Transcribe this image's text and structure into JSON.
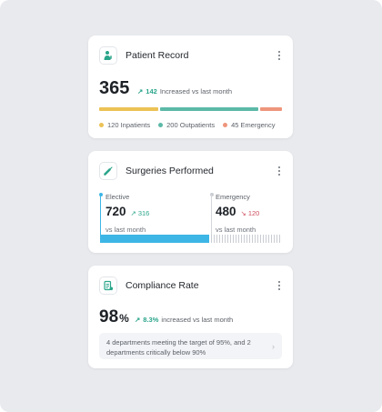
{
  "colors": {
    "accent_green": "#2aa58a",
    "down_red": "#d05060",
    "inpatients": "#ecc255",
    "outpatients": "#5cb9a7",
    "emergency": "#ee957c",
    "elective_bar": "#3db6e6",
    "emergency_bar": "#c9ccd2"
  },
  "patient_record": {
    "title": "Patient Record",
    "icon": "doctor-icon",
    "total": "365",
    "change_value": "142",
    "change_text": "Increased vs last month",
    "distribution": [
      {
        "label": "120 Inpatients",
        "value": 120,
        "color": "#ecc255"
      },
      {
        "label": "200 Outpatients",
        "value": 200,
        "color": "#5cb9a7"
      },
      {
        "label": "45 Emergency",
        "value": 45,
        "color": "#ee957c"
      }
    ]
  },
  "surgeries": {
    "title": "Surgeries Performed",
    "icon": "syringe-icon",
    "elective": {
      "label": "Elective",
      "value": "720",
      "change": "316",
      "sub": "vs last month"
    },
    "emergency": {
      "label": "Emergency",
      "value": "480",
      "change": "120",
      "sub": "vs last month"
    },
    "elective_share": 0.6
  },
  "compliance": {
    "title": "Compliance Rate",
    "icon": "clipboard-icon",
    "rate": "98",
    "rate_unit": "%",
    "change_value": "8.3%",
    "change_text": "increased vs last month",
    "note": "4 departments meeting the target of 95%, and 2 departments critically below 90%"
  }
}
